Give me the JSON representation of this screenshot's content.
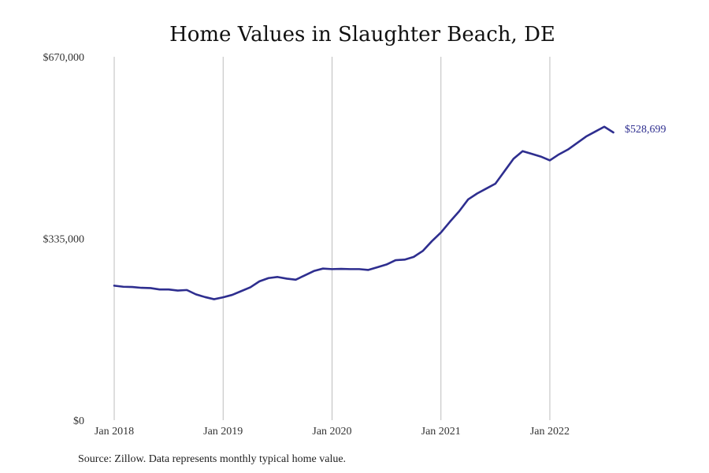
{
  "chart_data": {
    "type": "line",
    "title": "Home Values in Slaughter Beach, DE",
    "xlabel": "",
    "ylabel": "",
    "ylim": [
      0,
      670000
    ],
    "y_ticks": [
      {
        "value": 0,
        "label": "$0"
      },
      {
        "value": 335000,
        "label": "$335,000"
      },
      {
        "value": 670000,
        "label": "$670,000"
      }
    ],
    "x_ticks": [
      {
        "value": "2018-01",
        "label": "Jan 2018"
      },
      {
        "value": "2019-01",
        "label": "Jan 2019"
      },
      {
        "value": "2020-01",
        "label": "Jan 2020"
      },
      {
        "value": "2021-01",
        "label": "Jan 2021"
      },
      {
        "value": "2022-01",
        "label": "Jan 2022"
      }
    ],
    "grid": {
      "vertical": true,
      "horizontal": false
    },
    "series": [
      {
        "color": "#2e2e8f",
        "x": [
          "2018-01",
          "2018-02",
          "2018-03",
          "2018-04",
          "2018-05",
          "2018-06",
          "2018-07",
          "2018-08",
          "2018-09",
          "2018-10",
          "2018-11",
          "2018-12",
          "2019-01",
          "2019-02",
          "2019-03",
          "2019-04",
          "2019-05",
          "2019-06",
          "2019-07",
          "2019-08",
          "2019-09",
          "2019-10",
          "2019-11",
          "2019-12",
          "2020-01",
          "2020-02",
          "2020-03",
          "2020-04",
          "2020-05",
          "2020-06",
          "2020-07",
          "2020-08",
          "2020-09",
          "2020-10",
          "2020-11",
          "2020-12",
          "2021-01",
          "2021-02",
          "2021-03",
          "2021-04",
          "2021-05",
          "2021-06",
          "2021-07",
          "2021-08",
          "2021-09",
          "2021-10",
          "2021-11",
          "2021-12",
          "2022-01",
          "2022-02",
          "2022-03",
          "2022-04",
          "2022-05",
          "2022-06",
          "2022-07",
          "2022-08"
        ],
        "values": [
          248000,
          246000,
          245500,
          244000,
          243500,
          241000,
          241000,
          239000,
          240000,
          232000,
          227000,
          223000,
          226500,
          231000,
          238000,
          245000,
          256000,
          262000,
          264000,
          261000,
          259000,
          267000,
          275000,
          279500,
          278500,
          279000,
          278500,
          278500,
          277000,
          282000,
          287000,
          295000,
          296000,
          301000,
          312000,
          330000,
          346000,
          366000,
          385000,
          407000,
          418000,
          427000,
          436000,
          459000,
          482000,
          496000,
          491000,
          486000,
          479000,
          490000,
          499000,
          511000,
          523000,
          532000,
          541000,
          530500
        ]
      }
    ],
    "end_label": "$528,699",
    "source": "Source: Zillow. Data represents monthly typical home value."
  }
}
